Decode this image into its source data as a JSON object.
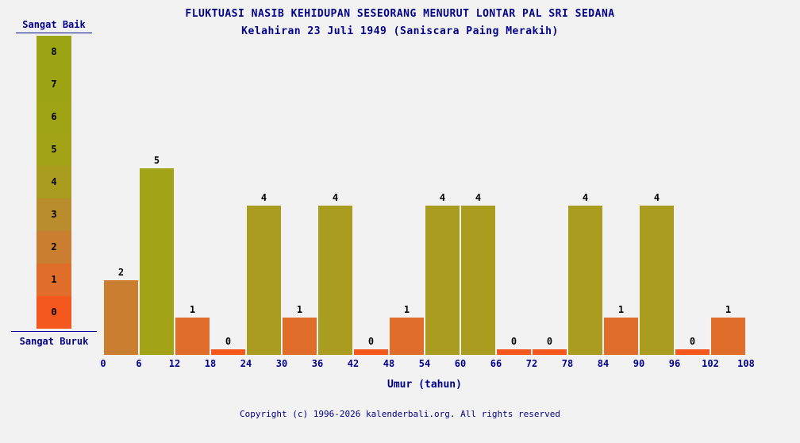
{
  "page": {
    "background": "#f2f2f2",
    "text_color": "#00008b",
    "title": "FLUKTUASI NASIB KEHIDUPAN SESEORANG MENURUT LONTAR PAL SRI SEDANA",
    "subtitle": "Kelahiran 23 Juli 1949 (Saniscara Paing Merakih)",
    "footer": "Copyright (c) 1996-2026 kalenderbali.org. All rights reserved"
  },
  "legend": {
    "top_label": "Sangat Baik",
    "bottom_label": "Sangat Buruk",
    "levels": [
      8,
      7,
      6,
      5,
      4,
      3,
      2,
      1,
      0
    ],
    "colors_by_value": [
      "#f4581c",
      "#e06d29",
      "#ca7e2f",
      "#b98d2b",
      "#a99c1e",
      "#a2a317",
      "#9fa415",
      "#9da414",
      "#9ba413"
    ]
  },
  "chart_data": {
    "type": "bar",
    "title": "FLUKTUASI NASIB KEHIDUPAN SESEORANG MENURUT LONTAR PAL SRI SEDANA",
    "subtitle": "Kelahiran 23 Juli 1949 (Saniscara Paing Merakih)",
    "xlabel": "Umur (tahun)",
    "ylabel": "",
    "ylim": [
      0,
      8
    ],
    "grid": false,
    "legend_position": "left",
    "x_ticks": [
      0,
      6,
      12,
      18,
      24,
      30,
      36,
      42,
      48,
      54,
      60,
      66,
      72,
      78,
      84,
      90,
      96,
      102,
      108
    ],
    "age_ranges": [
      "0-6",
      "6-12",
      "12-18",
      "18-24",
      "24-30",
      "30-36",
      "36-42",
      "42-48",
      "48-54",
      "54-60",
      "60-66",
      "66-72",
      "72-78",
      "78-84",
      "84-90",
      "90-96",
      "96-102",
      "102-108"
    ],
    "values": [
      2,
      5,
      1,
      0,
      4,
      1,
      4,
      0,
      1,
      4,
      4,
      0,
      0,
      4,
      1,
      4,
      0,
      1
    ],
    "value_scale": {
      "max_label": "Sangat Baik",
      "min_label": "Sangat Buruk",
      "max": 8,
      "min": 0
    }
  }
}
